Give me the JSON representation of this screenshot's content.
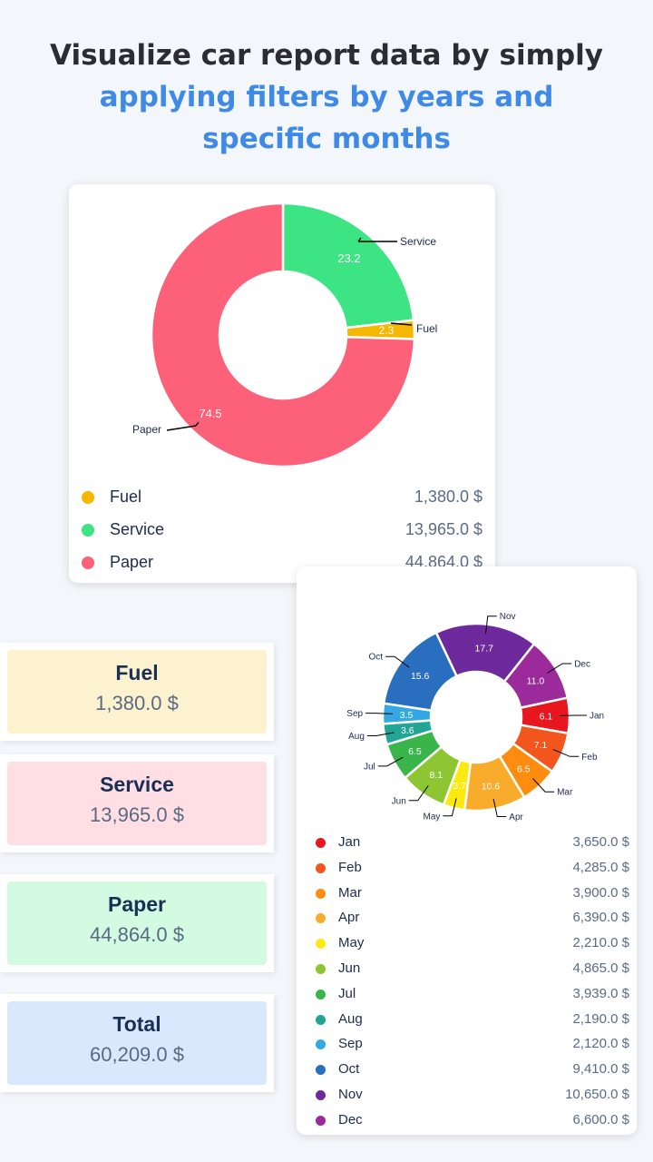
{
  "headline": {
    "line1": "Visualize car report data by simply",
    "line2": "applying filters by years and",
    "line3": "specific months"
  },
  "category_chart": {
    "chart_data": {
      "type": "pie",
      "style": "donut",
      "categories": [
        "Fuel",
        "Service",
        "Paper"
      ],
      "values": [
        2.3,
        23.2,
        74.5
      ],
      "colors": [
        "#f5b700",
        "#3ce483",
        "#fd6179"
      ]
    },
    "labels": {
      "fuel_val": "2.3",
      "fuel_name": "Fuel",
      "service_val": "23.2",
      "service_name": "Service",
      "paper_val": "74.5",
      "paper_name": "Paper"
    },
    "legend": [
      {
        "name": "Fuel",
        "value": "1,380.0 $",
        "color": "#f5b700"
      },
      {
        "name": "Service",
        "value": "13,965.0 $",
        "color": "#3ce483"
      },
      {
        "name": "Paper",
        "value": "44,864.0 $",
        "color": "#fd6179"
      }
    ]
  },
  "monthly_chart": {
    "chart_data": {
      "type": "pie",
      "style": "donut",
      "categories": [
        "Jan",
        "Feb",
        "Mar",
        "Apr",
        "May",
        "Jun",
        "Jul",
        "Aug",
        "Sep",
        "Oct",
        "Nov",
        "Dec"
      ],
      "values": [
        6.1,
        7.1,
        6.5,
        10.6,
        3.7,
        8.1,
        6.5,
        3.6,
        3.5,
        15.6,
        17.7,
        11.0
      ],
      "colors": [
        "#e8171f",
        "#f2561d",
        "#fd8c0f",
        "#f9ab2b",
        "#fde910",
        "#8ec532",
        "#39b54a",
        "#23a596",
        "#33a8e5",
        "#2a6ebf",
        "#6e2a9d",
        "#9b2a9b"
      ]
    },
    "legend": [
      {
        "name": "Jan",
        "value": "3,650.0 $",
        "color": "#e8171f"
      },
      {
        "name": "Feb",
        "value": "4,285.0 $",
        "color": "#f2561d"
      },
      {
        "name": "Mar",
        "value": "3,900.0 $",
        "color": "#fd8c0f"
      },
      {
        "name": "Apr",
        "value": "6,390.0 $",
        "color": "#f9ab2b"
      },
      {
        "name": "May",
        "value": "2,210.0 $",
        "color": "#fde910"
      },
      {
        "name": "Jun",
        "value": "4,865.0 $",
        "color": "#8ec532"
      },
      {
        "name": "Jul",
        "value": "3,939.0 $",
        "color": "#39b54a"
      },
      {
        "name": "Aug",
        "value": "2,190.0 $",
        "color": "#23a596"
      },
      {
        "name": "Sep",
        "value": "2,120.0 $",
        "color": "#33a8e5"
      },
      {
        "name": "Oct",
        "value": "9,410.0 $",
        "color": "#2a6ebf"
      },
      {
        "name": "Nov",
        "value": "10,650.0 $",
        "color": "#6e2a9d"
      },
      {
        "name": "Dec",
        "value": "6,600.0 $",
        "color": "#9b2a9b"
      }
    ]
  },
  "summary": [
    {
      "title": "Fuel",
      "value": "1,380.0 $",
      "color": "#fdf2d0"
    },
    {
      "title": "Service",
      "value": "13,965.0 $",
      "color": "#ffdfe4"
    },
    {
      "title": "Paper",
      "value": "44,864.0 $",
      "color": "#d2fbe1"
    },
    {
      "title": "Total",
      "value": "60,209.0 $",
      "color": "#d9e8fd"
    }
  ]
}
